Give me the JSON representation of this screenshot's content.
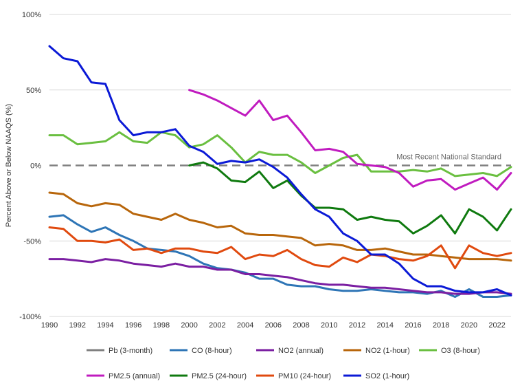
{
  "chart_data": {
    "type": "line",
    "title": "",
    "xlabel": "",
    "ylabel": "Percent Above or Below NAAQS (%)",
    "xlim": [
      1990,
      2023
    ],
    "ylim": [
      -100,
      100
    ],
    "x_ticks": [
      "1990",
      "1992",
      "1994",
      "1996",
      "1998",
      "2000",
      "2002",
      "2004",
      "2006",
      "2008",
      "2010",
      "2012",
      "2014",
      "2016",
      "2018",
      "2020",
      "2022"
    ],
    "y_ticks": [
      {
        "value": 100,
        "label": "100%"
      },
      {
        "value": 50,
        "label": "50%"
      },
      {
        "value": 0,
        "label": "0%"
      },
      {
        "value": -50,
        "label": "-50%"
      },
      {
        "value": -100,
        "label": "-100%"
      }
    ],
    "reference_line": {
      "value": 0,
      "label": "Most Recent National Standard",
      "color": "#808080"
    },
    "legend_position": "bottom",
    "series": [
      {
        "name": "Pb (3-month)",
        "color": "#808080",
        "dashed": true,
        "x": [],
        "values": []
      },
      {
        "name": "CO (8-hour)",
        "color": "#2e75b6",
        "x": [
          1990,
          1991,
          1992,
          1993,
          1994,
          1995,
          1996,
          1997,
          1998,
          1999,
          2000,
          2001,
          2002,
          2003,
          2004,
          2005,
          2006,
          2007,
          2008,
          2009,
          2010,
          2011,
          2012,
          2013,
          2014,
          2015,
          2016,
          2017,
          2018,
          2019,
          2020,
          2021,
          2022,
          2023
        ],
        "values": [
          -34,
          -33,
          -39,
          -44,
          -41,
          -46,
          -50,
          -55,
          -56,
          -57,
          -60,
          -65,
          -68,
          -69,
          -71,
          -75,
          -75,
          -79,
          -80,
          -80,
          -82,
          -83,
          -83,
          -82,
          -83,
          -84,
          -84,
          -85,
          -83,
          -87,
          -82,
          -87,
          -87,
          -86
        ]
      },
      {
        "name": "NO2 (annual)",
        "color": "#7b1fa2",
        "x": [
          1990,
          1991,
          1992,
          1993,
          1994,
          1995,
          1996,
          1997,
          1998,
          1999,
          2000,
          2001,
          2002,
          2003,
          2004,
          2005,
          2006,
          2007,
          2008,
          2009,
          2010,
          2011,
          2012,
          2013,
          2014,
          2015,
          2016,
          2017,
          2018,
          2019,
          2020,
          2021,
          2022,
          2023
        ],
        "values": [
          -62,
          -62,
          -63,
          -64,
          -62,
          -63,
          -65,
          -66,
          -67,
          -65,
          -67,
          -67,
          -69,
          -69,
          -72,
          -72,
          -73,
          -74,
          -76,
          -78,
          -79,
          -79,
          -80,
          -81,
          -81,
          -82,
          -83,
          -84,
          -84,
          -85,
          -85,
          -84,
          -84,
          -85
        ]
      },
      {
        "name": "NO2 (1-hour)",
        "color": "#b8660b",
        "x": [
          1990,
          1991,
          1992,
          1993,
          1994,
          1995,
          1996,
          1997,
          1998,
          1999,
          2000,
          2001,
          2002,
          2003,
          2004,
          2005,
          2006,
          2007,
          2008,
          2009,
          2010,
          2011,
          2012,
          2013,
          2014,
          2015,
          2016,
          2017,
          2018,
          2019,
          2020,
          2021,
          2022,
          2023
        ],
        "values": [
          -18,
          -19,
          -25,
          -27,
          -25,
          -26,
          -32,
          -34,
          -36,
          -32,
          -36,
          -38,
          -41,
          -40,
          -45,
          -46,
          -46,
          -47,
          -48,
          -53,
          -52,
          -53,
          -56,
          -56,
          -55,
          -57,
          -59,
          -59,
          -60,
          -61,
          -62,
          -62,
          -62,
          -63
        ]
      },
      {
        "name": "O3 (8-hour)",
        "color": "#6abf40",
        "x": [
          1990,
          1991,
          1992,
          1993,
          1994,
          1995,
          1996,
          1997,
          1998,
          1999,
          2000,
          2001,
          2002,
          2003,
          2004,
          2005,
          2006,
          2007,
          2008,
          2009,
          2010,
          2011,
          2012,
          2013,
          2014,
          2015,
          2016,
          2017,
          2018,
          2019,
          2020,
          2021,
          2022,
          2023
        ],
        "values": [
          20,
          20,
          14,
          15,
          16,
          22,
          16,
          15,
          22,
          20,
          12,
          14,
          20,
          12,
          2,
          9,
          7,
          7,
          2,
          -5,
          0,
          5,
          7,
          -4,
          -4,
          -4,
          -3,
          -4,
          -2,
          -7,
          -6,
          -5,
          -7,
          -1
        ]
      },
      {
        "name": "PM2.5 (annual)",
        "color": "#c01bbf",
        "x": [
          2000,
          2001,
          2002,
          2003,
          2004,
          2005,
          2006,
          2007,
          2008,
          2009,
          2010,
          2011,
          2012,
          2013,
          2014,
          2015,
          2016,
          2017,
          2018,
          2019,
          2020,
          2021,
          2022,
          2023
        ],
        "values": [
          50,
          47,
          43,
          38,
          33,
          43,
          30,
          33,
          22,
          10,
          11,
          9,
          1,
          0,
          -1,
          -5,
          -14,
          -10,
          -9,
          -16,
          -12,
          -8,
          -16,
          -5
        ]
      },
      {
        "name": "PM2.5 (24-hour)",
        "color": "#0f7a0f",
        "x": [
          2000,
          2001,
          2002,
          2003,
          2004,
          2005,
          2006,
          2007,
          2008,
          2009,
          2010,
          2011,
          2012,
          2013,
          2014,
          2015,
          2016,
          2017,
          2018,
          2019,
          2020,
          2021,
          2022,
          2023
        ],
        "values": [
          0,
          2,
          -2,
          -10,
          -11,
          -4,
          -15,
          -10,
          -20,
          -28,
          -28,
          -29,
          -36,
          -34,
          -36,
          -37,
          -45,
          -40,
          -33,
          -45,
          -29,
          -34,
          -43,
          -29
        ]
      },
      {
        "name": "PM10 (24-hour)",
        "color": "#e04a0f",
        "x": [
          1990,
          1991,
          1992,
          1993,
          1994,
          1995,
          1996,
          1997,
          1998,
          1999,
          2000,
          2001,
          2002,
          2003,
          2004,
          2005,
          2006,
          2007,
          2008,
          2009,
          2010,
          2011,
          2012,
          2013,
          2014,
          2015,
          2016,
          2017,
          2018,
          2019,
          2020,
          2021,
          2022,
          2023
        ],
        "values": [
          -41,
          -42,
          -50,
          -50,
          -51,
          -49,
          -56,
          -55,
          -58,
          -55,
          -55,
          -57,
          -58,
          -54,
          -62,
          -59,
          -60,
          -56,
          -62,
          -66,
          -67,
          -61,
          -64,
          -59,
          -60,
          -62,
          -63,
          -60,
          -53,
          -68,
          -53,
          -58,
          -60,
          -58
        ]
      },
      {
        "name": "SO2 (1-hour)",
        "color": "#0b1ad6",
        "x": [
          1990,
          1991,
          1992,
          1993,
          1994,
          1995,
          1996,
          1997,
          1998,
          1999,
          2000,
          2001,
          2002,
          2003,
          2004,
          2005,
          2006,
          2007,
          2008,
          2009,
          2010,
          2011,
          2012,
          2013,
          2014,
          2015,
          2016,
          2017,
          2018,
          2019,
          2020,
          2021,
          2022,
          2023
        ],
        "values": [
          79,
          71,
          69,
          55,
          54,
          30,
          20,
          22,
          22,
          24,
          13,
          9,
          1,
          3,
          2,
          4,
          -1,
          -8,
          -19,
          -29,
          -34,
          -45,
          -50,
          -59,
          -59,
          -65,
          -75,
          -80,
          -80,
          -83,
          -84,
          -84,
          -82,
          -86
        ]
      }
    ]
  }
}
